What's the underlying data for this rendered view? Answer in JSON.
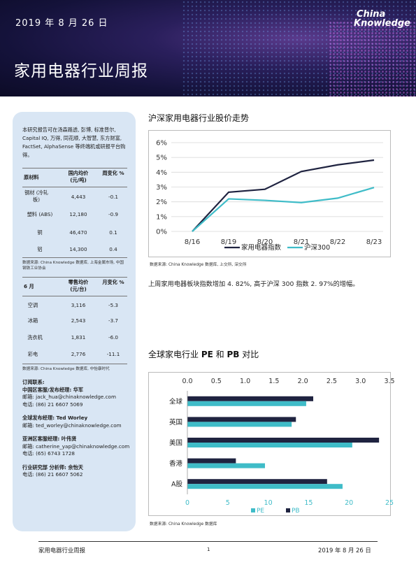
{
  "header": {
    "date": "2019 年 8 月 26 日",
    "logo_line1": "China",
    "logo_line2": "Knowledge",
    "title": "家用电器行业周报"
  },
  "sidebar": {
    "intro": "本研究报告可在汤森路透, 彭博, 标准普尔, Capital IQ, 万得, 同花顺, 大智慧, 东方财富, FactSet, AlphaSense 等终端机或研报平台购得。",
    "materials": {
      "headers": [
        "原材料",
        "国内均价 (元/吨)",
        "周变化 %"
      ],
      "rows": [
        {
          "name": "钢材 (冷轧板)",
          "price": "4,443",
          "change": "-0.1"
        },
        {
          "name": "塑料 (ABS)",
          "price": "12,180",
          "change": "-0.9"
        },
        {
          "name": "铜",
          "price": "46,470",
          "change": "0.1"
        },
        {
          "name": "铝",
          "price": "14,300",
          "change": "0.4"
        }
      ],
      "source": "数据来源: China Knowledge 数据库, 上海金属市场, 中国钢铁工业协会"
    },
    "retail": {
      "headers": [
        "6 月",
        "零售均价 (元/台)",
        "月变化 %"
      ],
      "rows": [
        {
          "name": "空调",
          "price": "3,116",
          "change": "-5.3"
        },
        {
          "name": "冰箱",
          "price": "2,543",
          "change": "-3.7"
        },
        {
          "name": "洗衣机",
          "price": "1,831",
          "change": "-6.0"
        },
        {
          "name": "彩电",
          "price": "2,776",
          "change": "-11.1"
        }
      ],
      "source": "数据来源: China Knowledge 数据库, 中怡康时代"
    },
    "contacts": [
      {
        "title": "订阅联系:",
        "role": "中国区客服/发布经理: 华军",
        "email": "邮箱: jack_hua@chinaknowledge.com",
        "phone": "电话: (86) 21 6607 5069"
      },
      {
        "title": "",
        "role": "全球发布经理: Ted Worley",
        "email": "邮箱: ted_worley@chinaknowledge.com",
        "phone": ""
      },
      {
        "title": "",
        "role": "亚洲区客服经理: 叶伟贤",
        "email": "邮箱: catherine_yap@chinaknowledge.com",
        "phone": "电话: (65) 6743 1728"
      },
      {
        "title": "",
        "role": "行业研究部 分析师: 余怡天",
        "email": "",
        "phone": "电话: (86) 21 6607 5062"
      }
    ]
  },
  "section1": {
    "title": "沪深家用电器行业股价走势",
    "source": "数据来源: China Knowledge 数据库, 上交所, 深交所",
    "paragraph": "上周家用电器板块指数增加 4. 82%, 高于沪深 300 指数 2. 97%的增幅。"
  },
  "section2": {
    "title_parts": [
      "全球家电行业 ",
      "PE",
      " 和 ",
      "PB",
      " 对比"
    ],
    "source": "数据来源: China Knowledge 数据库"
  },
  "chart_data": [
    {
      "type": "line",
      "x": [
        "8/16",
        "8/19",
        "8/20",
        "8/21",
        "8/22",
        "8/23"
      ],
      "ylim": [
        0,
        6
      ],
      "yticks": [
        "0%",
        "1%",
        "2%",
        "3%",
        "4%",
        "5%",
        "6%"
      ],
      "grid": true,
      "legend": "bottom",
      "series": [
        {
          "name": "家用电器指数",
          "color": "#1f2340",
          "values": [
            0,
            2.65,
            2.85,
            4.05,
            4.5,
            4.82
          ]
        },
        {
          "name": "沪深300",
          "color": "#3fbcc8",
          "values": [
            0,
            2.2,
            2.1,
            1.95,
            2.25,
            2.97
          ]
        }
      ]
    },
    {
      "type": "bar",
      "orientation": "horizontal",
      "categories": [
        "全球",
        "英国",
        "美国",
        "香港",
        "A股"
      ],
      "series": [
        {
          "name": "PE",
          "color": "#3fbcc8",
          "axis": "bottom",
          "values": [
            14.7,
            12.9,
            20.4,
            9.6,
            19.2
          ]
        },
        {
          "name": "PB",
          "color": "#1f2340",
          "axis": "top",
          "values": [
            2.18,
            1.88,
            3.32,
            0.84,
            2.42
          ]
        }
      ],
      "xlim_bottom": [
        0,
        25
      ],
      "xticks_bottom": [
        "0",
        "5",
        "10",
        "15",
        "20",
        "25"
      ],
      "xlim_top": [
        0,
        3.5
      ],
      "xticks_top": [
        "0.0",
        "0.5",
        "1.0",
        "1.5",
        "2.0",
        "2.5",
        "3.0",
        "3.5"
      ],
      "legend": "bottom"
    }
  ],
  "footer": {
    "left": "家用电器行业周报",
    "page": "1",
    "right": "2019 年 8 月 26 日"
  }
}
